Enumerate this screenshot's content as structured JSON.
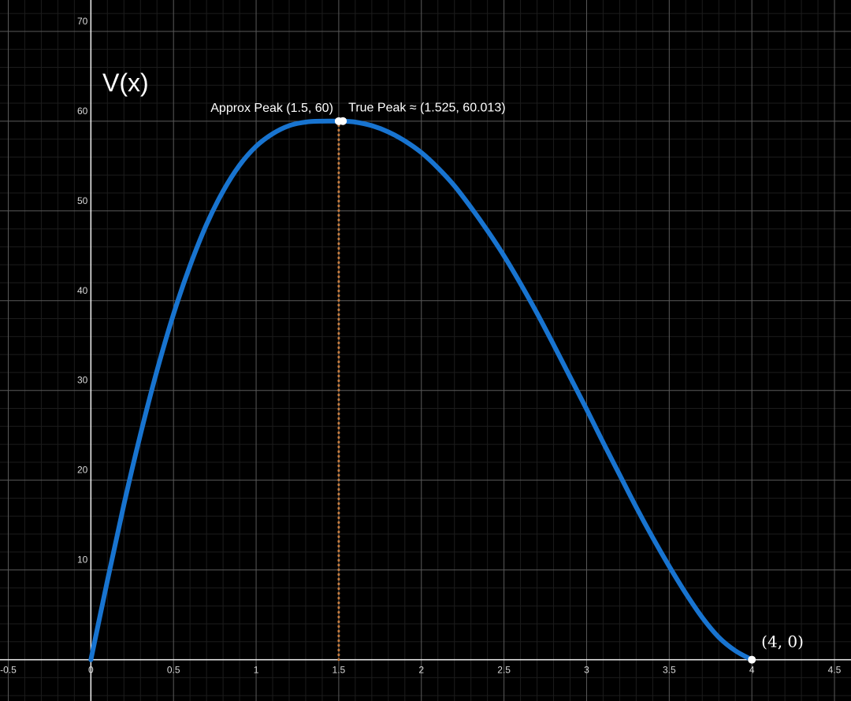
{
  "chart_data": {
    "type": "line",
    "function_label": "V(x)",
    "xlim": [
      -0.55,
      4.6
    ],
    "ylim": [
      -4.6,
      73.5
    ],
    "grid": true,
    "x_ticks": [
      -0.5,
      0,
      0.5,
      1,
      1.5,
      2,
      2.5,
      3,
      3.5,
      4,
      4.5
    ],
    "x_tick_labels": [
      "-0.5",
      "0",
      "0.5",
      "1",
      "1.5",
      "2",
      "2.5",
      "3",
      "3.5",
      "4",
      "4.5"
    ],
    "y_ticks": [
      10,
      20,
      30,
      40,
      50,
      60,
      70
    ],
    "y_tick_labels": [
      "10",
      "20",
      "30",
      "40",
      "50",
      "60",
      "70"
    ],
    "series": [
      {
        "color": "#1874d0",
        "x": [
          0,
          0.1,
          0.2,
          0.3,
          0.4,
          0.5,
          0.6,
          0.7,
          0.8,
          0.9,
          1.0,
          1.1,
          1.2,
          1.3,
          1.4,
          1.5,
          1.525,
          1.6,
          1.7,
          1.8,
          1.9,
          2.0,
          2.1,
          2.2,
          2.3,
          2.4,
          2.5,
          2.6,
          2.7,
          2.8,
          2.9,
          3.0,
          3.1,
          3.2,
          3.3,
          3.4,
          3.5,
          3.6,
          3.7,
          3.8,
          3.9,
          4.0
        ],
        "y": [
          0,
          8.8,
          17.3,
          25.1,
          32.2,
          38.5,
          43.9,
          48.5,
          52.2,
          55.1,
          57.2,
          58.6,
          59.5,
          59.9,
          60.0,
          60.0,
          60.01,
          59.9,
          59.5,
          58.8,
          57.8,
          56.5,
          54.8,
          52.8,
          50.4,
          47.8,
          45.0,
          41.9,
          38.6,
          35.1,
          31.5,
          27.9,
          24.2,
          20.6,
          17.0,
          13.6,
          10.4,
          7.4,
          4.7,
          2.5,
          1.0,
          0
        ]
      }
    ],
    "reference_line": {
      "x": 1.5,
      "color": "#c67c3f",
      "style": "dotted"
    },
    "points": [
      {
        "x": 1.5,
        "y": 60,
        "label": "Approx Peak (1.5, 60)"
      },
      {
        "x": 1.525,
        "y": 60.013,
        "label": "True Peak ≈ (1.525, 60.013)"
      },
      {
        "x": 4,
        "y": 0,
        "label": "(4, 0)"
      }
    ]
  }
}
